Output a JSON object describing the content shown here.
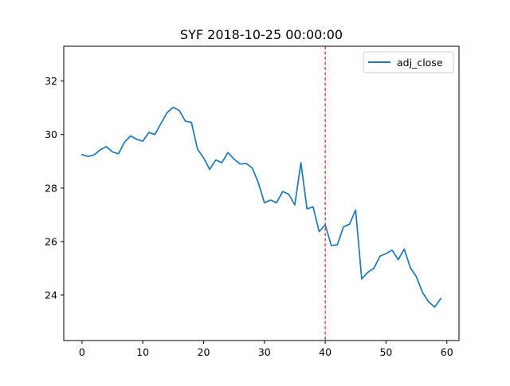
{
  "chart_data": {
    "type": "line",
    "title": "SYF 2018-10-25 00:00:00",
    "xlabel": "",
    "ylabel": "",
    "xlim": [
      -3,
      62
    ],
    "ylim": [
      22.3,
      33.3
    ],
    "xticks": [
      0,
      10,
      20,
      30,
      40,
      50,
      60
    ],
    "yticks": [
      24,
      26,
      28,
      30,
      32
    ],
    "grid": false,
    "legend_position": "top-right",
    "series": [
      {
        "name": "adj_close",
        "color": "#1f77b4",
        "x": [
          0,
          1,
          2,
          3,
          4,
          5,
          6,
          7,
          8,
          9,
          10,
          11,
          12,
          13,
          14,
          15,
          16,
          17,
          18,
          19,
          20,
          21,
          22,
          23,
          24,
          25,
          26,
          27,
          28,
          29,
          30,
          31,
          32,
          33,
          34,
          35,
          36,
          37,
          38,
          39,
          40,
          41,
          42,
          43,
          44,
          45,
          46,
          47,
          48,
          49,
          50,
          51,
          52,
          53,
          54,
          55,
          56,
          57,
          58,
          59
        ],
        "values": [
          29.25,
          29.18,
          29.24,
          29.43,
          29.55,
          29.35,
          29.28,
          29.72,
          29.95,
          29.82,
          29.75,
          30.08,
          30.0,
          30.42,
          30.82,
          31.02,
          30.9,
          30.5,
          30.45,
          29.45,
          29.13,
          28.7,
          29.05,
          28.95,
          29.33,
          29.08,
          28.9,
          28.92,
          28.75,
          28.2,
          27.45,
          27.55,
          27.45,
          27.87,
          27.77,
          27.37,
          28.95,
          27.22,
          27.3,
          26.37,
          26.63,
          25.85,
          25.88,
          26.55,
          26.65,
          27.18,
          24.6,
          24.85,
          25.0,
          25.45,
          25.55,
          25.68,
          25.32,
          25.72,
          25.02,
          24.68,
          24.1,
          23.75,
          23.55,
          23.87
        ]
      }
    ],
    "annotations": [
      {
        "type": "vline",
        "x": 40,
        "color": "#d62728",
        "style": "dashed"
      }
    ]
  }
}
